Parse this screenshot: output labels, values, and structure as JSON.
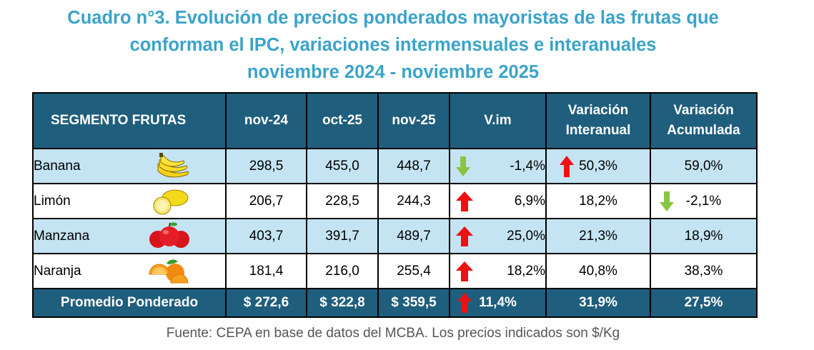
{
  "title": {
    "line1": "Cuadro n°3. Evolución de precios ponderados mayoristas de las frutas que",
    "line2": "conforman el IPC, variaciones intermensuales e interanuales",
    "line3": "noviembre 2024 - noviembre 2025"
  },
  "headers": {
    "segment": "SEGMENTO FRUTAS",
    "c1": "nov-24",
    "c2": "oct-25",
    "c3": "nov-25",
    "vim": "V.im",
    "interanual_1": "Variación",
    "interanual_2": "Interanual",
    "acumulada_1": "Variación",
    "acumulada_2": "Acumulada"
  },
  "rows": [
    {
      "name": "Banana",
      "icon": "banana-icon",
      "nov24": "298,5",
      "oct25": "455,0",
      "nov25": "448,7",
      "vim": "-1,4%",
      "vim_dir": "down",
      "interanual": "50,3%",
      "inter_dir": "up",
      "acumulada": "59,0%",
      "acum_dir": ""
    },
    {
      "name": "Limón",
      "icon": "lemon-icon",
      "nov24": "206,7",
      "oct25": "228,5",
      "nov25": "244,3",
      "vim": "6,9%",
      "vim_dir": "up",
      "interanual": "18,2%",
      "inter_dir": "",
      "acumulada": "-2,1%",
      "acum_dir": "down"
    },
    {
      "name": "Manzana",
      "icon": "apple-icon",
      "nov24": "403,7",
      "oct25": "391,7",
      "nov25": "489,7",
      "vim": "25,0%",
      "vim_dir": "up",
      "interanual": "21,3%",
      "inter_dir": "",
      "acumulada": "18,9%",
      "acum_dir": ""
    },
    {
      "name": "Naranja",
      "icon": "orange-icon",
      "nov24": "181,4",
      "oct25": "216,0",
      "nov25": "255,4",
      "vim": "18,2%",
      "vim_dir": "up",
      "interanual": "40,8%",
      "inter_dir": "",
      "acumulada": "38,3%",
      "acum_dir": ""
    }
  ],
  "total": {
    "label": "Promedio Ponderado",
    "nov24": "$ 272,6",
    "oct25": "$ 322,8",
    "nov25": "$ 359,5",
    "vim": "11,4%",
    "vim_dir": "up",
    "interanual": "31,9%",
    "acumulada": "27,5%"
  },
  "colors": {
    "title": "#3aa3c9",
    "header_bg": "#1f5e7c",
    "light_row": "#c5e4f3",
    "arrow_up": "#ee1111",
    "arrow_down": "#88c540"
  },
  "source": "Fuente: CEPA en base de datos del MCBA. Los precios indicados son $/Kg"
}
